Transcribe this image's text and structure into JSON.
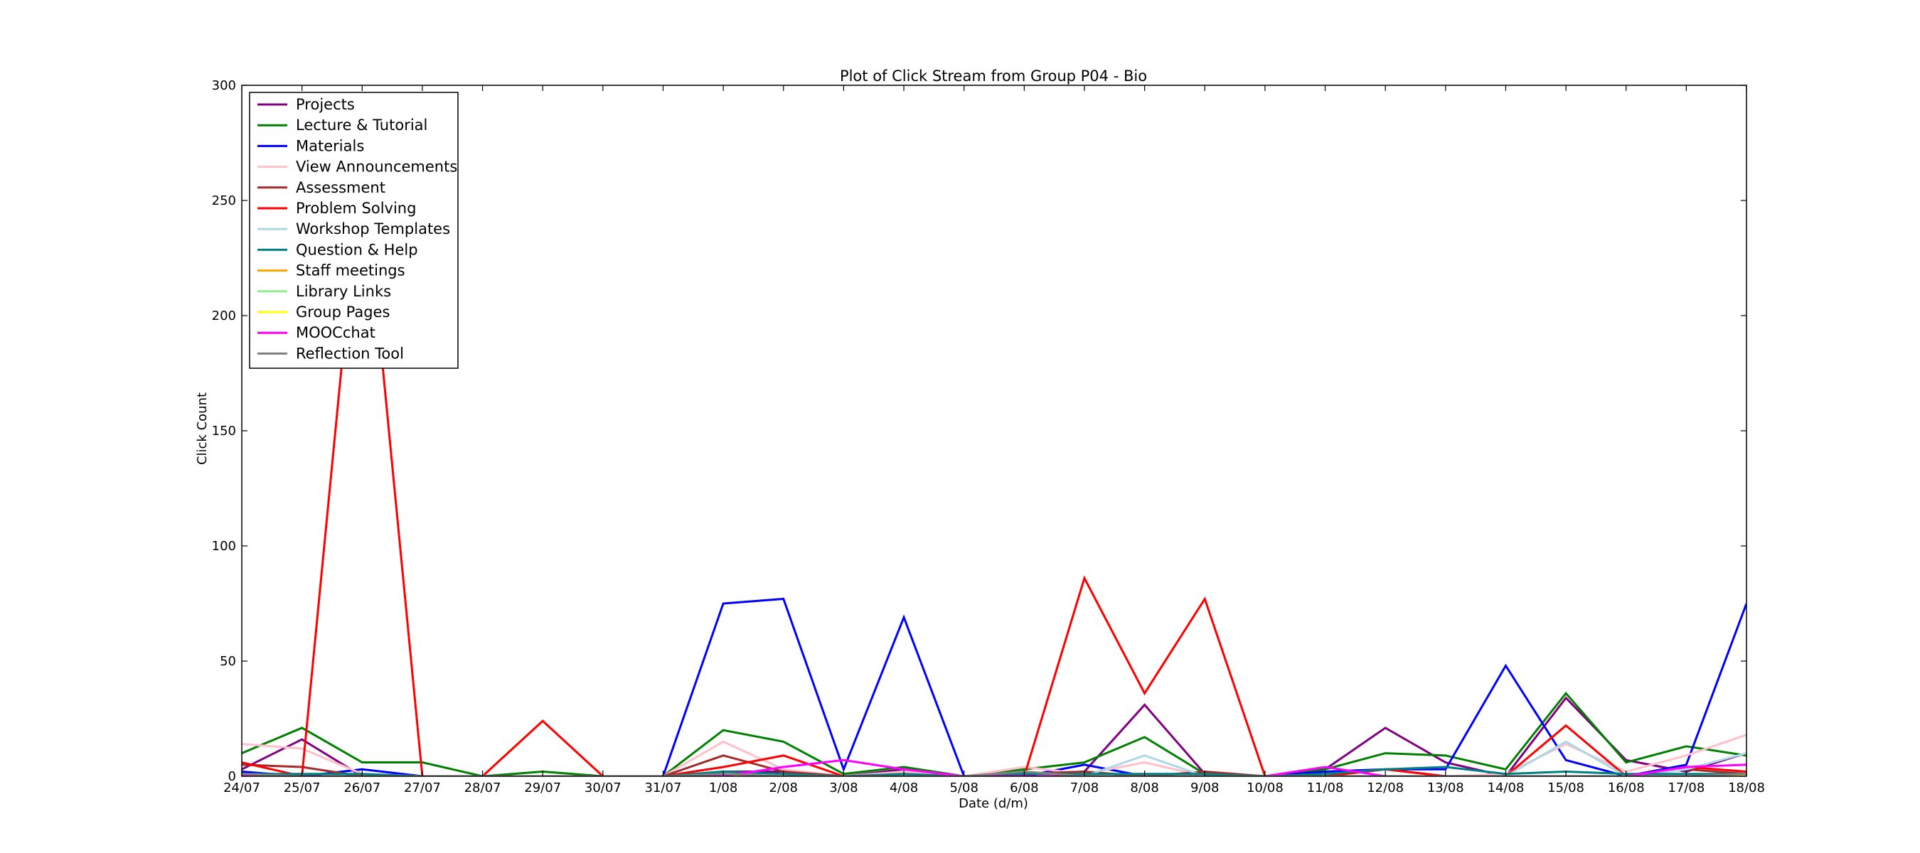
{
  "chart_data": {
    "type": "line",
    "title": "Plot of Click Stream from Group P04 - Bio",
    "xlabel": "Date (d/m)",
    "ylabel": "Click Count",
    "ylim": [
      0,
      300
    ],
    "yticks": [
      0,
      50,
      100,
      150,
      200,
      250,
      300
    ],
    "grid": false,
    "legend": "top-left",
    "categories": [
      "24/07",
      "25/07",
      "26/07",
      "27/07",
      "28/07",
      "29/07",
      "30/07",
      "31/07",
      "1/08",
      "2/08",
      "3/08",
      "4/08",
      "5/08",
      "6/08",
      "7/08",
      "8/08",
      "9/08",
      "10/08",
      "11/08",
      "12/08",
      "13/08",
      "14/08",
      "15/08",
      "16/08",
      "17/08",
      "18/08"
    ],
    "series": [
      {
        "name": "Projects",
        "color": "#800080",
        "values": [
          3,
          16,
          0,
          0,
          0,
          0,
          0,
          0,
          2,
          2,
          0,
          3,
          0,
          1,
          2,
          31,
          1,
          0,
          3,
          21,
          6,
          0,
          34,
          7,
          2,
          10
        ]
      },
      {
        "name": "Lecture & Tutorial",
        "color": "#008000",
        "values": [
          10,
          21,
          6,
          6,
          0,
          2,
          0,
          0,
          20,
          15,
          1,
          4,
          0,
          3,
          6,
          17,
          1,
          0,
          3,
          10,
          9,
          3,
          36,
          6,
          13,
          9
        ]
      },
      {
        "name": "Materials",
        "color": "#0000ff",
        "values": [
          2,
          0,
          3,
          0,
          0,
          0,
          0,
          0,
          75,
          77,
          3,
          69,
          0,
          0,
          5,
          0,
          0,
          0,
          2,
          3,
          3,
          48,
          7,
          0,
          5,
          75
        ]
      },
      {
        "name": "View Announcements",
        "color": "#ffc0cb",
        "values": [
          14,
          12,
          1,
          0,
          0,
          0,
          0,
          0,
          15,
          3,
          0,
          2,
          0,
          4,
          1,
          6,
          0,
          0,
          0,
          0,
          0,
          1,
          14,
          2,
          9,
          18
        ]
      },
      {
        "name": "Assessment",
        "color": "#a52a2a",
        "values": [
          5,
          4,
          0,
          0,
          0,
          0,
          0,
          0,
          9,
          2,
          0,
          0,
          0,
          1,
          2,
          0,
          2,
          0,
          0,
          3,
          0,
          0,
          0,
          0,
          3,
          1
        ]
      },
      {
        "name": "Problem Solving",
        "color": "#ff0000",
        "values": [
          6,
          0,
          270,
          0,
          0,
          24,
          0,
          0,
          4,
          9,
          0,
          0,
          0,
          0,
          86,
          36,
          77,
          0,
          0,
          3,
          0,
          0,
          22,
          0,
          4,
          2
        ]
      },
      {
        "name": "Workshop Templates",
        "color": "#add8e6",
        "values": [
          0,
          0,
          0,
          0,
          0,
          0,
          0,
          0,
          1,
          0,
          0,
          0,
          0,
          2,
          0,
          9,
          0,
          0,
          0,
          0,
          0,
          0,
          15,
          0,
          3,
          10
        ]
      },
      {
        "name": "Question & Help",
        "color": "#008080",
        "values": [
          1,
          1,
          1,
          0,
          0,
          0,
          0,
          0,
          2,
          1,
          0,
          1,
          0,
          1,
          1,
          1,
          1,
          0,
          1,
          3,
          4,
          1,
          2,
          1,
          1,
          1
        ]
      },
      {
        "name": "Staff meetings",
        "color": "#ffa500",
        "values": [
          0,
          0,
          0,
          0,
          0,
          0,
          0,
          0,
          0,
          0,
          0,
          0,
          0,
          0,
          0,
          0,
          0,
          0,
          0,
          0,
          0,
          0,
          0,
          0,
          0,
          0
        ]
      },
      {
        "name": "Library Links",
        "color": "#90ee90",
        "values": [
          0,
          0,
          0,
          0,
          0,
          0,
          0,
          0,
          0,
          0,
          0,
          0,
          0,
          0,
          0,
          0,
          0,
          0,
          0,
          0,
          0,
          0,
          0,
          0,
          0,
          0
        ]
      },
      {
        "name": "Group Pages",
        "color": "#ffff00",
        "values": [
          0,
          0,
          0,
          0,
          0,
          0,
          0,
          0,
          0,
          0,
          0,
          0,
          0,
          0,
          0,
          0,
          0,
          0,
          0,
          0,
          0,
          0,
          0,
          0,
          0,
          0
        ]
      },
      {
        "name": "MOOCchat",
        "color": "#ff00ff",
        "values": [
          0,
          0,
          0,
          0,
          0,
          0,
          0,
          0,
          0,
          4,
          7,
          3,
          0,
          0,
          0,
          0,
          0,
          0,
          4,
          0,
          0,
          0,
          0,
          0,
          4,
          5
        ]
      },
      {
        "name": "Reflection Tool",
        "color": "#808080",
        "values": [
          1,
          0,
          0,
          0,
          0,
          0,
          0,
          0,
          1,
          0,
          0,
          0,
          0,
          2,
          0,
          0,
          0,
          0,
          0,
          0,
          0,
          0,
          0,
          0,
          0,
          1
        ]
      }
    ]
  }
}
